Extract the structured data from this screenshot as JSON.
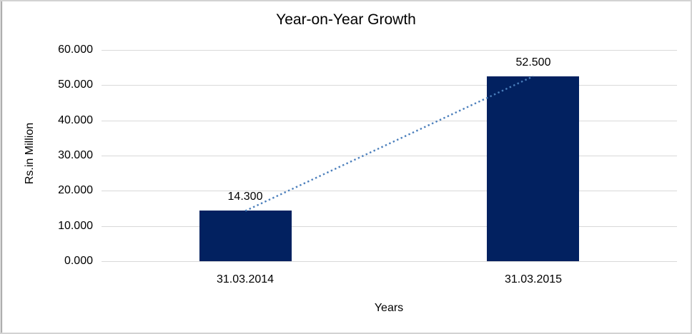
{
  "chart_data": {
    "type": "bar",
    "title": "Year-on-Year Growth",
    "xlabel": "Years",
    "ylabel": "Rs.in Million",
    "categories": [
      "31.03.2014",
      "31.03.2015"
    ],
    "values": [
      14.3,
      52.5
    ],
    "value_labels": [
      "14.300",
      "52.500"
    ],
    "ylim": [
      0,
      60
    ],
    "ytick_step": 10,
    "ytick_labels": [
      "0.000",
      "10.000",
      "20.000",
      "30.000",
      "40.000",
      "50.000",
      "60.000"
    ],
    "grid": true,
    "legend_position": "none",
    "bar_color": "#022160",
    "trendline": {
      "style": "dotted",
      "color": "#4a7ebb",
      "from_value": 14.3,
      "to_value": 52.5
    },
    "gridline_color": "#d9d9d9",
    "text_color": "#000000",
    "frame_border_color": "#d2d2d2"
  }
}
